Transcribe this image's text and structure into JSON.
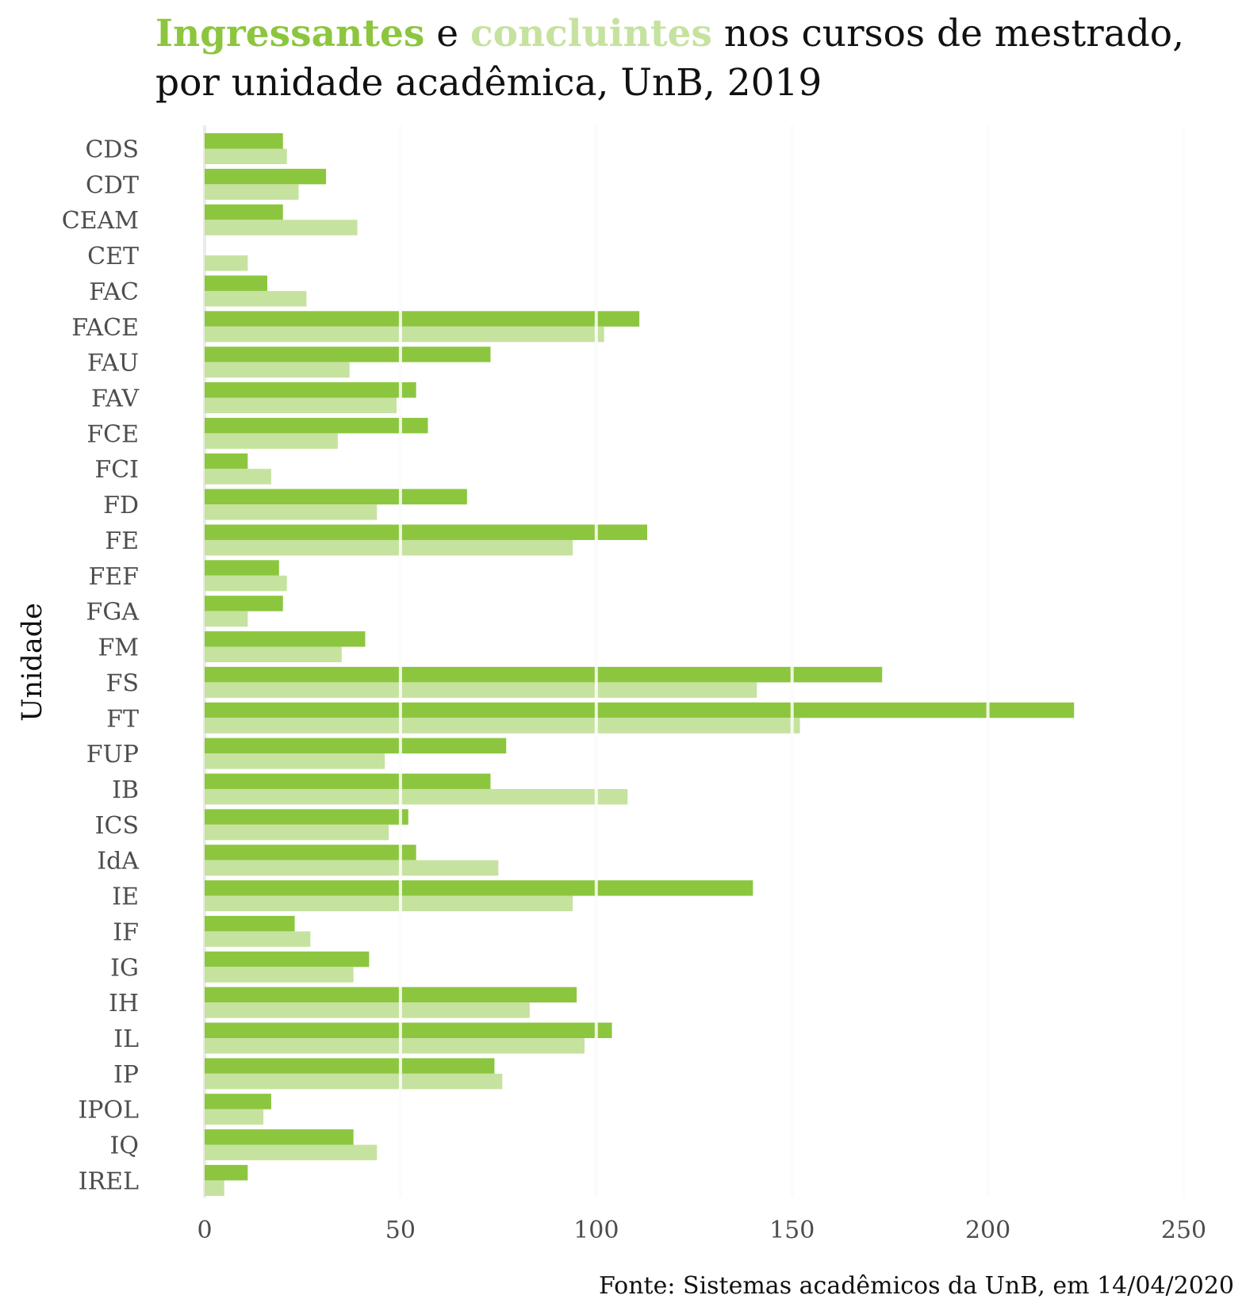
{
  "title": {
    "part1": "Ingressantes",
    "part2": " e ",
    "part3": "concluintes",
    "part4": " nos cursos de mestrado,",
    "line2": "por unidade acadêmica, UnB, 2019"
  },
  "caption": "Fonte: Sistemas acadêmicos da UnB, em 14/04/2020",
  "colors": {
    "ingressantes": "#8cc63f",
    "concluintes": "#c6e29f",
    "grid": "#ebebeb"
  },
  "chart_data": {
    "type": "bar",
    "orientation": "horizontal",
    "ylabel": "Unidade",
    "xlabel": "",
    "xlim": [
      0,
      250
    ],
    "xticks": [
      0,
      50,
      100,
      150,
      200,
      250
    ],
    "grid": "vertical",
    "categories": [
      "CDS",
      "CDT",
      "CEAM",
      "CET",
      "FAC",
      "FACE",
      "FAU",
      "FAV",
      "FCE",
      "FCI",
      "FD",
      "FE",
      "FEF",
      "FGA",
      "FM",
      "FS",
      "FT",
      "FUP",
      "IB",
      "ICS",
      "IdA",
      "IE",
      "IF",
      "IG",
      "IH",
      "IL",
      "IP",
      "IPOL",
      "IQ",
      "IREL"
    ],
    "series": [
      {
        "name": "Ingressantes",
        "values": [
          20,
          31,
          20,
          0,
          16,
          111,
          73,
          54,
          57,
          11,
          67,
          113,
          19,
          20,
          41,
          173,
          222,
          77,
          73,
          52,
          54,
          140,
          23,
          42,
          95,
          104,
          74,
          17,
          38,
          11
        ]
      },
      {
        "name": "concluintes",
        "values": [
          21,
          24,
          39,
          11,
          26,
          102,
          37,
          49,
          34,
          17,
          44,
          94,
          21,
          11,
          35,
          141,
          152,
          46,
          108,
          47,
          75,
          94,
          27,
          38,
          83,
          97,
          76,
          15,
          44,
          5
        ]
      }
    ]
  }
}
